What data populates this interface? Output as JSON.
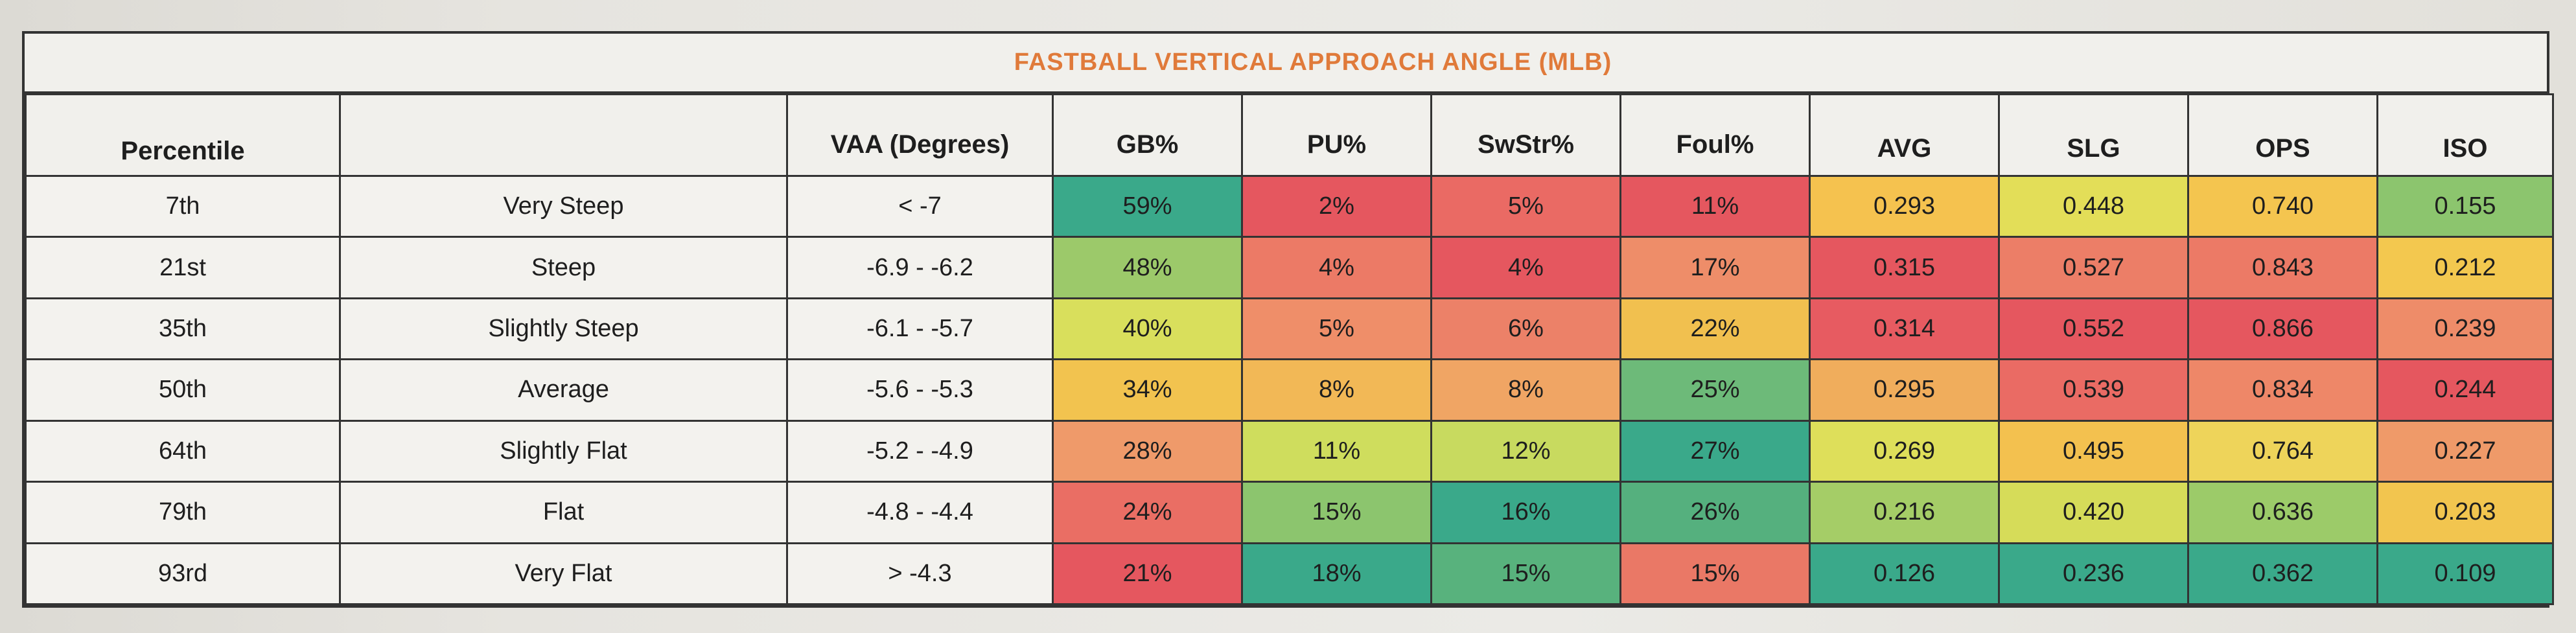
{
  "title": "FASTBALL VERTICAL APPROACH ANGLE (MLB)",
  "columns": [
    "Percentile",
    "",
    "VAA (Degrees)",
    "GB%",
    "PU%",
    "SwStr%",
    "Foul%",
    "AVG",
    "SLG",
    "OPS",
    "ISO"
  ],
  "rows": [
    {
      "percentile": "7th",
      "label": "Very Steep",
      "vaa": "< -7",
      "gb": "59%",
      "pu": "2%",
      "swstr": "5%",
      "foul": "11%",
      "avg": "0.293",
      "slg": "0.448",
      "ops": "0.740",
      "iso": "0.155"
    },
    {
      "percentile": "21st",
      "label": "Steep",
      "vaa": "-6.9 - -6.2",
      "gb": "48%",
      "pu": "4%",
      "swstr": "4%",
      "foul": "17%",
      "avg": "0.315",
      "slg": "0.527",
      "ops": "0.843",
      "iso": "0.212"
    },
    {
      "percentile": "35th",
      "label": "Slightly Steep",
      "vaa": "-6.1 - -5.7",
      "gb": "40%",
      "pu": "5%",
      "swstr": "6%",
      "foul": "22%",
      "avg": "0.314",
      "slg": "0.552",
      "ops": "0.866",
      "iso": "0.239"
    },
    {
      "percentile": "50th",
      "label": "Average",
      "vaa": "-5.6 - -5.3",
      "gb": "34%",
      "pu": "8%",
      "swstr": "8%",
      "foul": "25%",
      "avg": "0.295",
      "slg": "0.539",
      "ops": "0.834",
      "iso": "0.244"
    },
    {
      "percentile": "64th",
      "label": "Slightly Flat",
      "vaa": "-5.2 - -4.9",
      "gb": "28%",
      "pu": "11%",
      "swstr": "12%",
      "foul": "27%",
      "avg": "0.269",
      "slg": "0.495",
      "ops": "0.764",
      "iso": "0.227"
    },
    {
      "percentile": "79th",
      "label": "Flat",
      "vaa": "-4.8 - -4.4",
      "gb": "24%",
      "pu": "15%",
      "swstr": "16%",
      "foul": "26%",
      "avg": "0.216",
      "slg": "0.420",
      "ops": "0.636",
      "iso": "0.203"
    },
    {
      "percentile": "93rd",
      "label": "Very Flat",
      "vaa": "> -4.3",
      "gb": "21%",
      "pu": "18%",
      "swstr": "15%",
      "foul": "15%",
      "avg": "0.126",
      "slg": "0.236",
      "ops": "0.362",
      "iso": "0.109"
    }
  ],
  "colors": {
    "gb": [
      "#3aa98a",
      "#9cc96a",
      "#d9df5c",
      "#f2c34f",
      "#ef9a6a",
      "#ea6e64",
      "#e5575f"
    ],
    "pu": [
      "#e5575f",
      "#ec7a66",
      "#ef8e69",
      "#f2b856",
      "#cfdd5d",
      "#8cc56e",
      "#3aa98a"
    ],
    "swstr": [
      "#ea6a64",
      "#e5575f",
      "#ec8168",
      "#f0a564",
      "#c8da5f",
      "#3aa98a",
      "#58b27d"
    ],
    "foul": [
      "#e5575f",
      "#ee8d69",
      "#f1c04f",
      "#6dba79",
      "#3aa98a",
      "#55b07e",
      "#ea7866"
    ],
    "avg": [
      "#f5c24f",
      "#e5575f",
      "#e75b61",
      "#f0ad5c",
      "#dedf5a",
      "#a5cd67",
      "#3aa98a"
    ],
    "slg": [
      "#e3de58",
      "#ec7e67",
      "#e5575f",
      "#ea6b64",
      "#f3c14f",
      "#d6dc59",
      "#3aa98a"
    ],
    "ops": [
      "#f4c54f",
      "#ec7a66",
      "#e5575f",
      "#ee8768",
      "#eed45a",
      "#9ccb69",
      "#3aa98a"
    ],
    "iso": [
      "#8cc56e",
      "#f3c84f",
      "#ee8c69",
      "#e5575f",
      "#ef9a69",
      "#f2c54f",
      "#3aa98a"
    ]
  }
}
